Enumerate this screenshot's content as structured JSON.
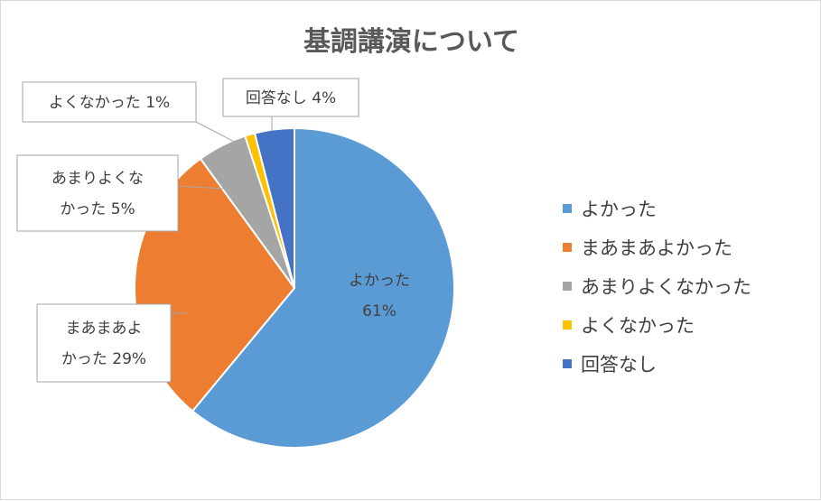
{
  "chart_data": {
    "type": "pie",
    "title": "基調講演について",
    "categories": [
      "よかった",
      "まあまあよかった",
      "あまりよくなかった",
      "よくなかった",
      "回答なし"
    ],
    "values": [
      61,
      29,
      5,
      1,
      4
    ],
    "colors": [
      "#5b9bd5",
      "#ed7d31",
      "#a5a5a5",
      "#ffc000",
      "#4472c4"
    ],
    "data_labels": [
      [
        "よかった",
        "61%"
      ],
      [
        "まあまあよ",
        "かった 29%"
      ],
      [
        "あまりよくな",
        "かった 5%"
      ],
      [
        "よくなかった 1%"
      ],
      [
        "回答なし 4%"
      ]
    ],
    "legend_position": "right"
  }
}
